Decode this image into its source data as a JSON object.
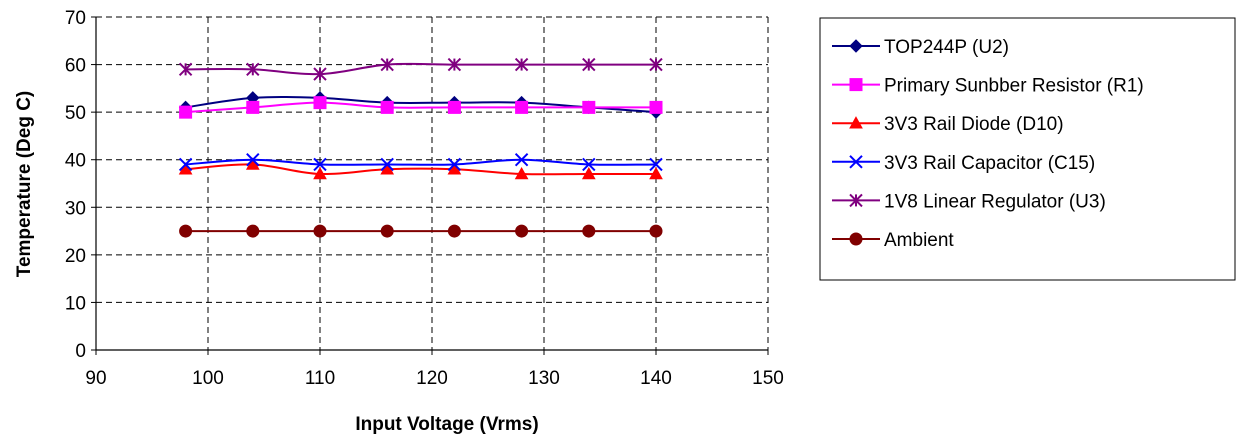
{
  "chart_data": {
    "type": "line",
    "xlabel": "Input Voltage (Vrms)",
    "ylabel": "Temperature (Deg C)",
    "xlim": [
      90,
      150
    ],
    "ylim": [
      0,
      70
    ],
    "xticks": [
      90,
      100,
      110,
      120,
      130,
      140,
      150
    ],
    "yticks": [
      0,
      10,
      20,
      30,
      40,
      50,
      60,
      70
    ],
    "grid": true,
    "legend_position": "right",
    "x": [
      98,
      104,
      110,
      116,
      122,
      128,
      134,
      140
    ],
    "series": [
      {
        "name": "TOP244P (U2)",
        "color": "#000080",
        "marker": "diamond",
        "values": [
          51,
          53,
          53,
          52,
          52,
          52,
          51,
          50
        ]
      },
      {
        "name": "Primary Sunbber Resistor (R1)",
        "color": "#ff00ff",
        "marker": "square",
        "values": [
          50,
          51,
          52,
          51,
          51,
          51,
          51,
          51
        ]
      },
      {
        "name": "3V3 Rail Diode (D10)",
        "color": "#ff0000",
        "marker": "triangle",
        "values": [
          38,
          39,
          37,
          38,
          38,
          37,
          37,
          37
        ]
      },
      {
        "name": "3V3 Rail Capacitor (C15)",
        "color": "#0000ff",
        "marker": "x",
        "values": [
          39,
          40,
          39,
          39,
          39,
          40,
          39,
          39
        ]
      },
      {
        "name": "1V8 Linear Regulator (U3)",
        "color": "#800080",
        "marker": "star",
        "values": [
          59,
          59,
          58,
          60,
          60,
          60,
          60,
          60
        ]
      },
      {
        "name": "Ambient",
        "color": "#800000",
        "marker": "circle",
        "values": [
          25,
          25,
          25,
          25,
          25,
          25,
          25,
          25
        ]
      }
    ]
  }
}
